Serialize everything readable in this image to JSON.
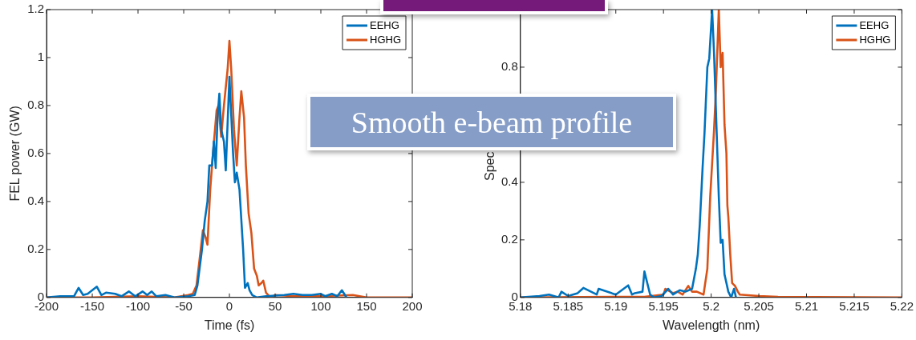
{
  "chart_data": [
    {
      "type": "line",
      "xlabel": "Time (fs)",
      "ylabel": "FEL power (GW)",
      "xlim": [
        -200,
        200
      ],
      "xticks": [
        -200,
        -150,
        -100,
        -50,
        0,
        50,
        100,
        150,
        200
      ],
      "ylim": [
        0,
        1.2
      ],
      "yticks": [
        0,
        0.2,
        0.4,
        0.6,
        0.8,
        1,
        1.2
      ],
      "legend": "top right",
      "grid": false,
      "annotations": [
        "Smooth e-beam profile"
      ],
      "series": [
        {
          "name": "EEHG",
          "color": "#0072bd",
          "x": [
            -200,
            -185,
            -170,
            -165,
            -160,
            -155,
            -145,
            -140,
            -135,
            -125,
            -118,
            -110,
            -103,
            -95,
            -90,
            -85,
            -80,
            -70,
            -60,
            -45,
            -38,
            -35,
            -30,
            -27,
            -24,
            -22,
            -19,
            -17,
            -15,
            -13,
            -11,
            -9,
            -6,
            -4,
            0,
            4,
            6,
            8,
            11,
            15,
            17,
            20,
            22,
            25,
            30,
            40,
            60,
            70,
            80,
            90,
            100,
            105,
            112,
            118,
            123,
            128
          ],
          "values": [
            0,
            0.005,
            0.005,
            0.04,
            0.01,
            0.015,
            0.045,
            0.01,
            0.02,
            0.015,
            0.005,
            0.025,
            0.005,
            0.025,
            0.01,
            0.025,
            0.005,
            0.01,
            0,
            0.005,
            0.01,
            0.05,
            0.2,
            0.32,
            0.4,
            0.55,
            0.55,
            0.65,
            0.54,
            0.75,
            0.85,
            0.7,
            0.65,
            0.53,
            0.92,
            0.6,
            0.48,
            0.52,
            0.45,
            0.2,
            0.04,
            0.06,
            0.03,
            0.01,
            0,
            0.005,
            0.01,
            0.015,
            0.01,
            0.01,
            0.015,
            0.005,
            0.015,
            0.005,
            0.03,
            0
          ]
        },
        {
          "name": "HGHG",
          "color": "#d95319",
          "x": [
            -200,
            -150,
            -100,
            -60,
            -45,
            -40,
            -36,
            -32,
            -29,
            -26,
            -24,
            -21,
            -18,
            -14,
            -12,
            -9,
            -6,
            -2,
            0,
            2,
            5,
            8,
            11,
            13,
            16,
            18,
            21,
            24,
            27,
            30,
            32,
            35,
            37,
            40,
            45,
            50,
            70,
            100,
            135,
            150,
            200
          ],
          "values": [
            0,
            0,
            0.005,
            0,
            0.01,
            0.015,
            0.05,
            0.18,
            0.28,
            0.25,
            0.22,
            0.45,
            0.6,
            0.78,
            0.8,
            0.67,
            0.8,
            0.95,
            1.07,
            0.95,
            0.7,
            0.55,
            0.75,
            0.86,
            0.75,
            0.55,
            0.35,
            0.27,
            0.12,
            0.09,
            0.05,
            0.06,
            0.07,
            0.02,
            0,
            0.01,
            0.005,
            0.005,
            0.01,
            0,
            0
          ]
        }
      ]
    },
    {
      "type": "line",
      "xlabel": "Wavelength (nm)",
      "ylabel": "Spec",
      "xlim": [
        5.18,
        5.22
      ],
      "xticks": [
        5.18,
        5.185,
        5.19,
        5.195,
        5.2,
        5.205,
        5.21,
        5.215,
        5.22
      ],
      "ylim": [
        0,
        1
      ],
      "yticks": [
        0,
        0.2,
        0.4,
        {
          "value": 0.6,
          "label": null
        },
        0.8,
        {
          "value": 1,
          "label": null
        }
      ],
      "legend": "top right",
      "grid": false,
      "series": [
        {
          "name": "EEHG",
          "color": "#0072bd",
          "x": [
            5.18,
            5.182,
            5.183,
            5.184,
            5.1843,
            5.185,
            5.186,
            5.1866,
            5.188,
            5.1882,
            5.19,
            5.1913,
            5.1917,
            5.192,
            5.1928,
            5.193,
            5.1936,
            5.194,
            5.1948,
            5.1955,
            5.196,
            5.1967,
            5.1973,
            5.198,
            5.1984,
            5.1986,
            5.1988,
            5.1991,
            5.1993,
            5.1996,
            5.1998,
            5.2001,
            5.2003,
            5.2006,
            5.2008,
            5.201,
            5.2012,
            5.2014,
            5.2016,
            5.2018,
            5.2021,
            5.2024,
            5.2026
          ],
          "values": [
            0,
            0.005,
            0.01,
            0,
            0.02,
            0.005,
            0.015,
            0.033,
            0.01,
            0.03,
            0.01,
            0.042,
            0.01,
            0.015,
            0.02,
            0.09,
            0.01,
            0,
            0.005,
            0.03,
            0.01,
            0.025,
            0.02,
            0.03,
            0.1,
            0.15,
            0.25,
            0.45,
            0.57,
            0.8,
            0.83,
            1,
            0.85,
            0.55,
            0.35,
            0.19,
            0.2,
            0.08,
            0.05,
            0.02,
            0,
            0.03,
            0
          ]
        },
        {
          "name": "HGHG",
          "color": "#d95319",
          "x": [
            5.18,
            5.19,
            5.193,
            5.195,
            5.1952,
            5.196,
            5.1965,
            5.197,
            5.1976,
            5.198,
            5.1985,
            5.1992,
            5.1996,
            5.1999,
            5.2003,
            5.2005,
            5.2008,
            5.201,
            5.2012,
            5.2014,
            5.2016,
            5.2017,
            5.2018,
            5.202,
            5.2022,
            5.2025,
            5.2028,
            5.203,
            5.205,
            5.207,
            5.22
          ],
          "values": [
            0,
            0.002,
            0.002,
            0.01,
            0.03,
            0.015,
            0.02,
            0.01,
            0.04,
            0.02,
            0.02,
            0.01,
            0.1,
            0.35,
            0.58,
            0.72,
            1,
            0.8,
            0.85,
            0.6,
            0.5,
            0.32,
            0.28,
            0.15,
            0.05,
            0.04,
            0.02,
            0.01,
            0.005,
            0.002,
            0
          ]
        }
      ]
    }
  ]
}
